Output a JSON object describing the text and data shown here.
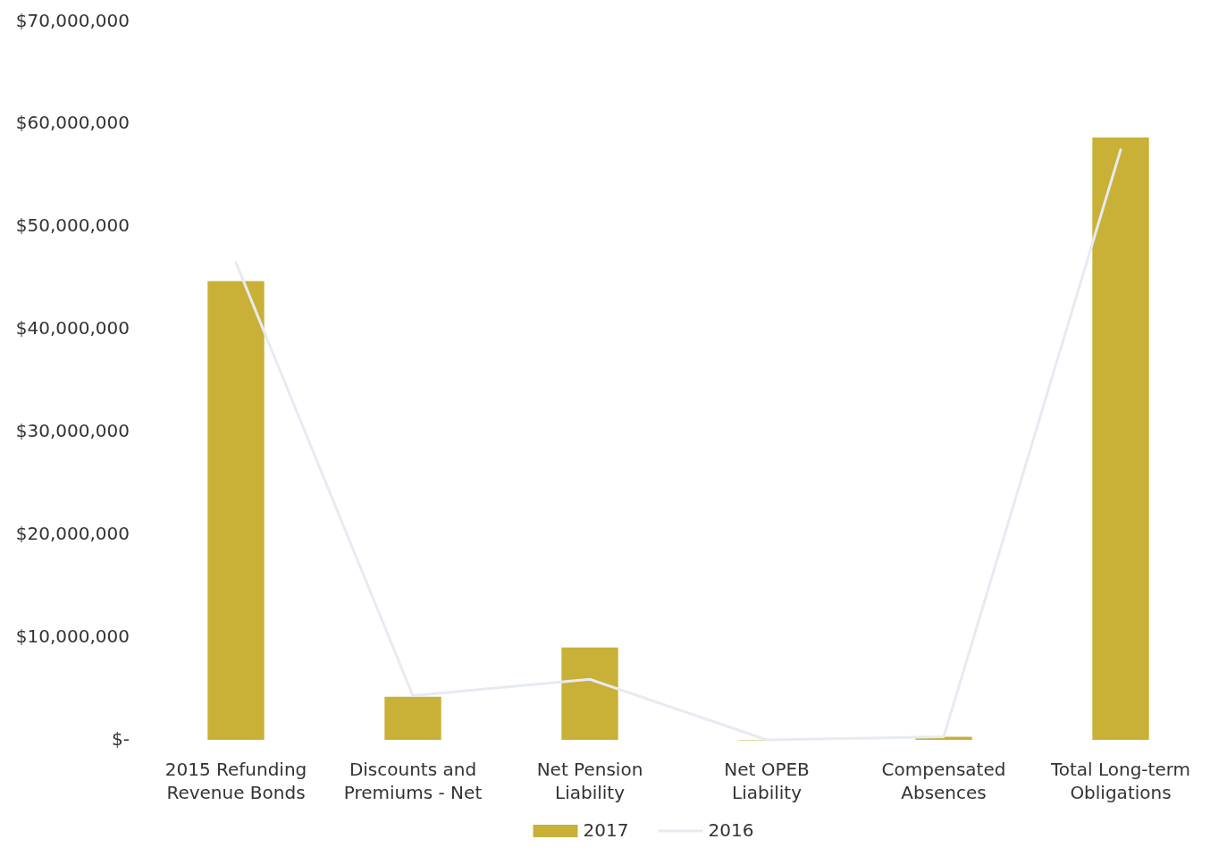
{
  "chart_data": {
    "type": "bar",
    "categories": [
      "2015 Refunding Revenue Bonds",
      "Discounts and Premiums - Net",
      "Net Pension Liability",
      "Net OPEB Liability",
      "Compensated Absences",
      "Total Long-term Obligations"
    ],
    "series": [
      {
        "name": "2017",
        "color": "#c9b037",
        "values": [
          44700000,
          4200000,
          9000000,
          0,
          300000,
          58700000
        ]
      },
      {
        "name": "2016",
        "type": "line",
        "color": "#e6ebf2",
        "values": [
          46500000,
          4300000,
          5900000,
          0,
          300000,
          57500000
        ]
      }
    ],
    "ylim": [
      0,
      70000000
    ],
    "yticks": [
      {
        "value": 0,
        "label": "$-"
      },
      {
        "value": 10000000,
        "label": "$10,000,000"
      },
      {
        "value": 20000000,
        "label": "$20,000,000"
      },
      {
        "value": 30000000,
        "label": "$30,000,000"
      },
      {
        "value": 40000000,
        "label": "$40,000,000"
      },
      {
        "value": 50000000,
        "label": "$50,000,000"
      },
      {
        "value": 60000000,
        "label": "$60,000,000"
      },
      {
        "value": 70000000,
        "label": "$70,000,000"
      }
    ],
    "legend": "bottom",
    "marker": "none",
    "line_style": "solid"
  }
}
